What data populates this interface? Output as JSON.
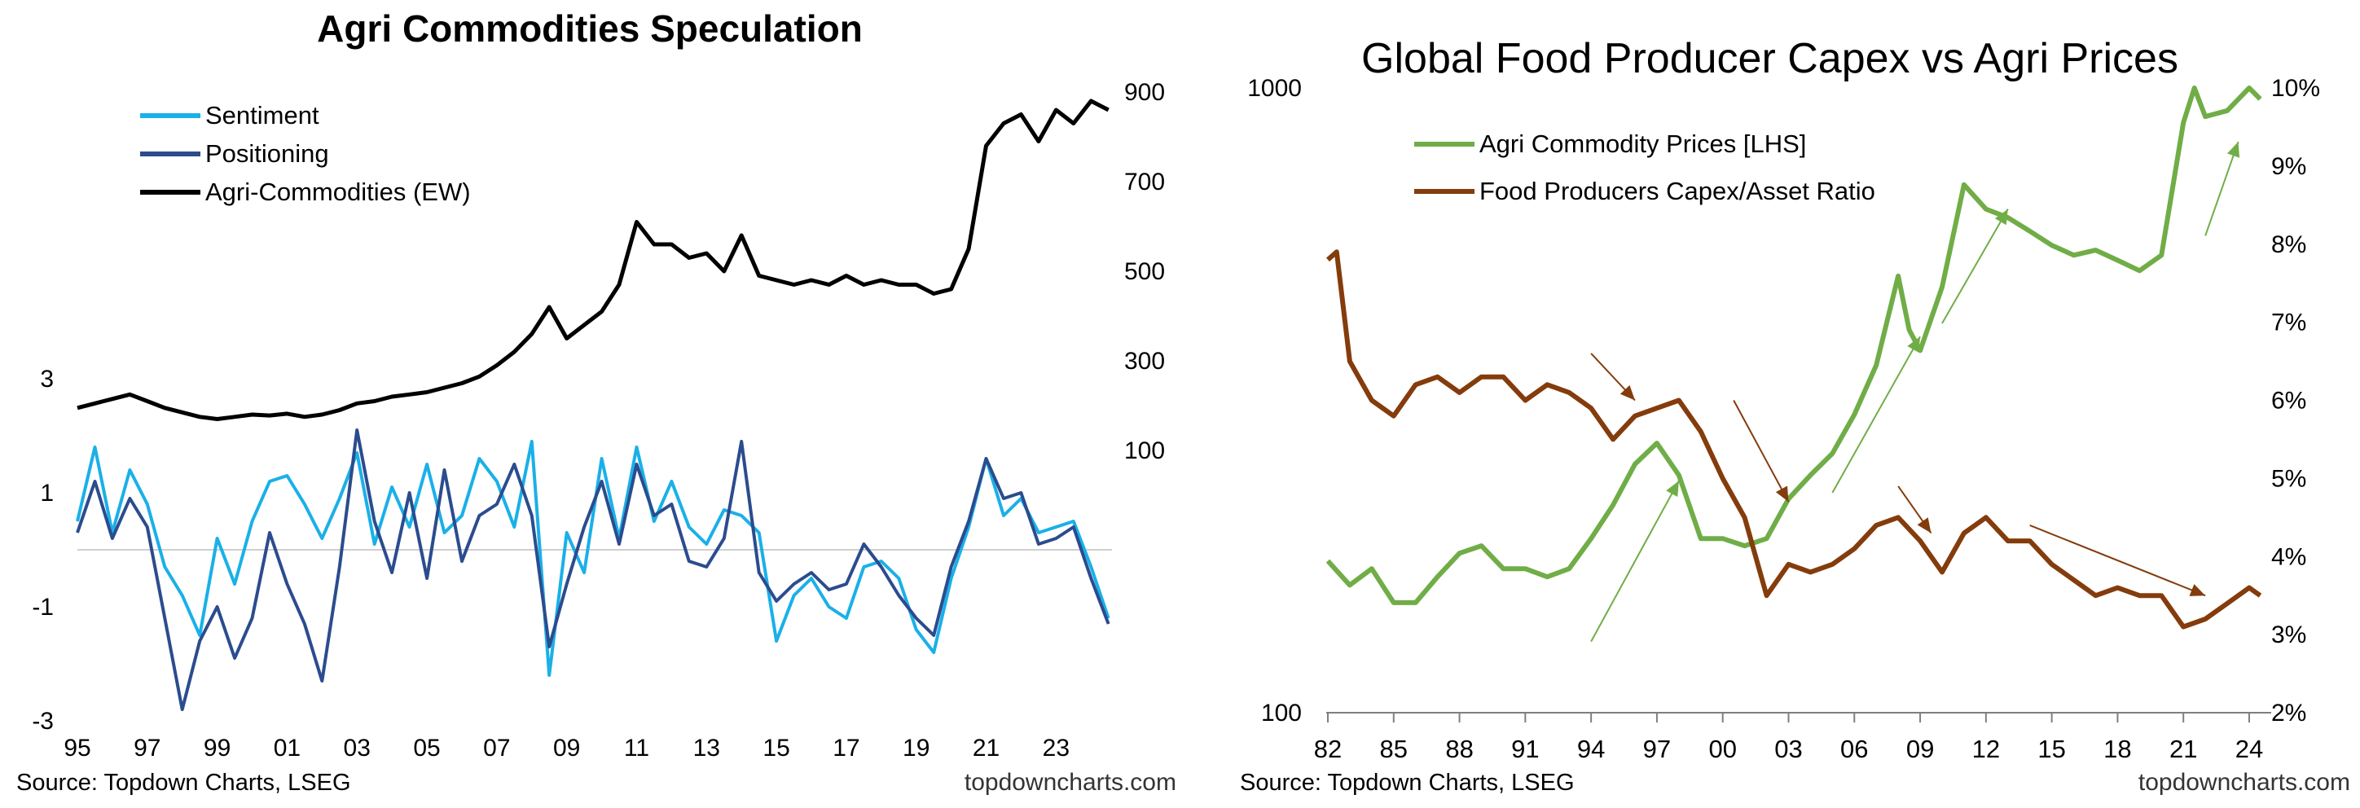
{
  "chart_data": [
    {
      "type": "line",
      "title": "Agri Commodities Speculation",
      "legend_position": "top-left",
      "grid": false,
      "x_ticks": [
        "95",
        "97",
        "99",
        "01",
        "03",
        "05",
        "07",
        "09",
        "11",
        "13",
        "15",
        "17",
        "19",
        "21",
        "23"
      ],
      "x_range": [
        1995,
        2024.6
      ],
      "left_axis": {
        "ticks": [
          "3",
          "1",
          "-1",
          "-3"
        ],
        "range": [
          -3,
          3
        ]
      },
      "right_axis": {
        "ticks": [
          "900",
          "700",
          "500",
          "300",
          "100"
        ],
        "range": [
          -300,
          1000
        ]
      },
      "series": [
        {
          "name": "Sentiment",
          "color": "#1ab0e8",
          "axis": "left",
          "x": [
            1995,
            1995.5,
            1996,
            1996.5,
            1997,
            1997.5,
            1998,
            1998.5,
            1999,
            1999.5,
            2000,
            2000.5,
            2001,
            2001.5,
            2002,
            2002.5,
            2003,
            2003.5,
            2004,
            2004.5,
            2005,
            2005.5,
            2006,
            2006.5,
            2007,
            2007.5,
            2008,
            2008.5,
            2009,
            2009.5,
            2010,
            2010.5,
            2011,
            2011.5,
            2012,
            2012.5,
            2013,
            2013.5,
            2014,
            2014.5,
            2015,
            2015.5,
            2016,
            2016.5,
            2017,
            2017.5,
            2018,
            2018.5,
            2019,
            2019.5,
            2020,
            2020.5,
            2021,
            2021.5,
            2022,
            2022.5,
            2023,
            2023.5,
            2024,
            2024.5
          ],
          "y": [
            0.5,
            1.8,
            0.3,
            1.4,
            0.8,
            -0.3,
            -0.8,
            -1.5,
            0.2,
            -0.6,
            0.5,
            1.2,
            1.3,
            0.8,
            0.2,
            0.9,
            1.7,
            0.1,
            1.1,
            0.4,
            1.5,
            0.3,
            0.6,
            1.6,
            1.2,
            0.4,
            1.9,
            -2.2,
            0.3,
            -0.4,
            1.6,
            0.2,
            1.8,
            0.5,
            1.2,
            0.4,
            0.1,
            0.7,
            0.6,
            0.3,
            -1.6,
            -0.8,
            -0.5,
            -1.0,
            -1.2,
            -0.3,
            -0.2,
            -0.5,
            -1.4,
            -1.8,
            -0.5,
            0.4,
            1.6,
            0.6,
            0.9,
            0.3,
            0.4,
            0.5,
            -0.3,
            -1.2
          ]
        },
        {
          "name": "Positioning",
          "color": "#2b4c8e",
          "axis": "left",
          "x": [
            1995,
            1995.5,
            1996,
            1996.5,
            1997,
            1997.5,
            1998,
            1998.5,
            1999,
            1999.5,
            2000,
            2000.5,
            2001,
            2001.5,
            2002,
            2002.5,
            2003,
            2003.5,
            2004,
            2004.5,
            2005,
            2005.5,
            2006,
            2006.5,
            2007,
            2007.5,
            2008,
            2008.5,
            2009,
            2009.5,
            2010,
            2010.5,
            2011,
            2011.5,
            2012,
            2012.5,
            2013,
            2013.5,
            2014,
            2014.5,
            2015,
            2015.5,
            2016,
            2016.5,
            2017,
            2017.5,
            2018,
            2018.5,
            2019,
            2019.5,
            2020,
            2020.5,
            2021,
            2021.5,
            2022,
            2022.5,
            2023,
            2023.5,
            2024,
            2024.5
          ],
          "y": [
            0.3,
            1.2,
            0.2,
            0.9,
            0.4,
            -1.2,
            -2.8,
            -1.6,
            -1.0,
            -1.9,
            -1.2,
            0.3,
            -0.6,
            -1.3,
            -2.3,
            -0.3,
            2.1,
            0.5,
            -0.4,
            1.0,
            -0.5,
            1.4,
            -0.2,
            0.6,
            0.8,
            1.5,
            0.6,
            -1.7,
            -0.6,
            0.4,
            1.2,
            0.1,
            1.5,
            0.6,
            0.8,
            -0.2,
            -0.3,
            0.2,
            1.9,
            -0.4,
            -0.9,
            -0.6,
            -0.4,
            -0.7,
            -0.6,
            0.1,
            -0.3,
            -0.8,
            -1.2,
            -1.5,
            -0.3,
            0.5,
            1.6,
            0.9,
            1.0,
            0.1,
            0.2,
            0.4,
            -0.5,
            -1.3
          ]
        },
        {
          "name": "Agri-Commodities (EW)",
          "color": "#000000",
          "axis": "right",
          "x": [
            1995,
            1995.5,
            1996,
            1996.5,
            1997,
            1997.5,
            1998,
            1998.5,
            1999,
            1999.5,
            2000,
            2000.5,
            2001,
            2001.5,
            2002,
            2002.5,
            2003,
            2003.5,
            2004,
            2004.5,
            2005,
            2005.5,
            2006,
            2006.5,
            2007,
            2007.5,
            2008,
            2008.5,
            2009,
            2009.5,
            2010,
            2010.5,
            2011,
            2011.5,
            2012,
            2012.5,
            2013,
            2013.5,
            2014,
            2014.5,
            2015,
            2015.5,
            2016,
            2016.5,
            2017,
            2017.5,
            2018,
            2018.5,
            2019,
            2019.5,
            2020,
            2020.5,
            2021,
            2021.5,
            2022,
            2022.5,
            2023,
            2023.5,
            2024,
            2024.5
          ],
          "y": [
            195,
            205,
            215,
            225,
            210,
            195,
            185,
            175,
            170,
            175,
            180,
            178,
            182,
            175,
            180,
            190,
            205,
            210,
            220,
            225,
            230,
            240,
            250,
            265,
            290,
            320,
            360,
            420,
            350,
            380,
            410,
            470,
            610,
            560,
            560,
            530,
            540,
            500,
            580,
            490,
            480,
            470,
            480,
            470,
            490,
            470,
            480,
            470,
            470,
            450,
            460,
            550,
            780,
            830,
            850,
            790,
            860,
            830,
            880,
            860
          ]
        }
      ]
    },
    {
      "type": "line",
      "title": "Global Food Producer Capex vs Agri Prices",
      "legend_position": "top-left",
      "grid": false,
      "x_ticks": [
        "82",
        "85",
        "88",
        "91",
        "94",
        "97",
        "00",
        "03",
        "06",
        "09",
        "12",
        "15",
        "18",
        "21",
        "24"
      ],
      "x_range": [
        1982,
        2025
      ],
      "left_axis": {
        "ticks": [
          "1000",
          "100"
        ],
        "range": [
          100,
          1000
        ],
        "scale": "log"
      },
      "right_axis": {
        "ticks": [
          "10%",
          "9%",
          "8%",
          "7%",
          "6%",
          "5%",
          "4%",
          "3%",
          "2%"
        ],
        "range": [
          2,
          10
        ]
      },
      "series": [
        {
          "name": "Agri Commodity Prices [LHS]",
          "color": "#70ad47",
          "axis": "left",
          "x": [
            1982,
            1983,
            1984,
            1985,
            1986,
            1987,
            1988,
            1989,
            1990,
            1991,
            1992,
            1993,
            1994,
            1995,
            1996,
            1997,
            1998,
            1999,
            2000,
            2001,
            2002,
            2003,
            2004,
            2005,
            2006,
            2007,
            2008,
            2008.5,
            2009,
            2010,
            2011,
            2012,
            2013,
            2014,
            2015,
            2016,
            2017,
            2018,
            2019,
            2020,
            2021,
            2021.5,
            2022,
            2023,
            2024,
            2024.5
          ],
          "y": [
            175,
            160,
            170,
            150,
            150,
            165,
            180,
            185,
            170,
            170,
            165,
            170,
            190,
            215,
            250,
            270,
            240,
            190,
            190,
            185,
            190,
            220,
            240,
            260,
            300,
            360,
            500,
            410,
            380,
            480,
            700,
            640,
            620,
            590,
            560,
            540,
            550,
            530,
            510,
            540,
            880,
            1000,
            900,
            920,
            1000,
            960
          ]
        },
        {
          "name": "Food Producers Capex/Asset Ratio",
          "color": "#843c0c",
          "axis": "right",
          "x": [
            1982,
            1982.4,
            1983,
            1984,
            1985,
            1986,
            1987,
            1988,
            1989,
            1990,
            1991,
            1992,
            1993,
            1994,
            1995,
            1996,
            1997,
            1998,
            1999,
            2000,
            2001,
            2002,
            2003,
            2004,
            2005,
            2006,
            2007,
            2008,
            2009,
            2010,
            2011,
            2012,
            2013,
            2014,
            2015,
            2016,
            2017,
            2018,
            2019,
            2020,
            2021,
            2022,
            2023,
            2024,
            2024.5
          ],
          "y": [
            7.8,
            7.9,
            6.5,
            6.0,
            5.8,
            6.2,
            6.3,
            6.1,
            6.3,
            6.3,
            6.0,
            6.2,
            6.1,
            5.9,
            5.5,
            5.8,
            5.9,
            6.0,
            5.6,
            5.0,
            4.5,
            3.5,
            3.9,
            3.8,
            3.9,
            4.1,
            4.4,
            4.5,
            4.2,
            3.8,
            4.3,
            4.5,
            4.2,
            4.2,
            3.9,
            3.7,
            3.5,
            3.6,
            3.5,
            3.5,
            3.1,
            3.2,
            3.4,
            3.6,
            3.5
          ]
        }
      ],
      "annotations": [
        {
          "type": "arrow",
          "color": "#843c0c",
          "from": [
            1994,
            6.6
          ],
          "to": [
            1996,
            6.0
          ]
        },
        {
          "type": "arrow",
          "color": "#843c0c",
          "from": [
            2000.5,
            6.0
          ],
          "to": [
            2003,
            4.7
          ]
        },
        {
          "type": "arrow",
          "color": "#843c0c",
          "from": [
            2008,
            4.9
          ],
          "to": [
            2009.5,
            4.3
          ]
        },
        {
          "type": "arrow",
          "color": "#843c0c",
          "from": [
            2014,
            4.4
          ],
          "to": [
            2022,
            3.5
          ]
        },
        {
          "type": "arrow",
          "color": "#70ad47",
          "from": [
            1994,
            130
          ],
          "to": [
            1998,
            235
          ]
        },
        {
          "type": "arrow",
          "color": "#70ad47",
          "from": [
            2005,
            225
          ],
          "to": [
            2009,
            400
          ]
        },
        {
          "type": "arrow",
          "color": "#70ad47",
          "from": [
            2010,
            420
          ],
          "to": [
            2013,
            640
          ]
        },
        {
          "type": "arrow",
          "color": "#70ad47",
          "from": [
            2022,
            580
          ],
          "to": [
            2023.5,
            820
          ]
        }
      ]
    }
  ],
  "footer": {
    "left_source": "Source: Topdown Charts, LSEG",
    "left_brand": "topdowncharts.com",
    "right_source": "Source: Topdown Charts, LSEG",
    "right_brand": "topdowncharts.com"
  }
}
